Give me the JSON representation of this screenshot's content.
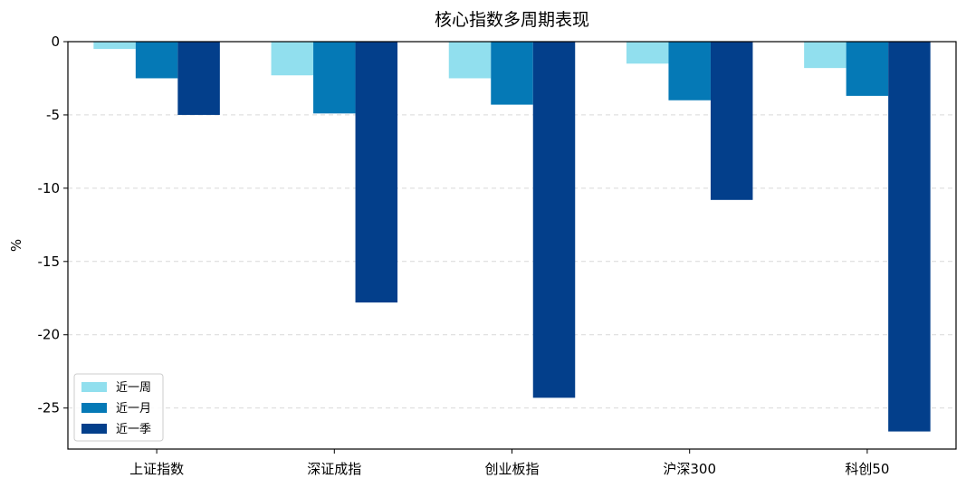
{
  "chart_data": {
    "type": "bar",
    "title": "核心指数多周期表现",
    "xlabel": "",
    "ylabel": "%",
    "categories": [
      "上证指数",
      "深证成指",
      "创业板指",
      "沪深300",
      "科创50"
    ],
    "series": [
      {
        "name": "近一周",
        "color": "#91dfee",
        "values": [
          -0.5,
          -2.3,
          -2.5,
          -1.5,
          -1.8
        ]
      },
      {
        "name": "近一月",
        "color": "#0579b6",
        "values": [
          -2.5,
          -4.9,
          -4.3,
          -4.0,
          -3.7
        ]
      },
      {
        "name": "近一季",
        "color": "#033f8b",
        "values": [
          -5.0,
          -17.8,
          -24.3,
          -10.8,
          -26.6
        ]
      }
    ],
    "ylim": [
      -27.8,
      0
    ],
    "yticks": [
      0,
      -5,
      -10,
      -15,
      -20,
      -25
    ],
    "grid": true,
    "legend_position": "lower-left"
  }
}
